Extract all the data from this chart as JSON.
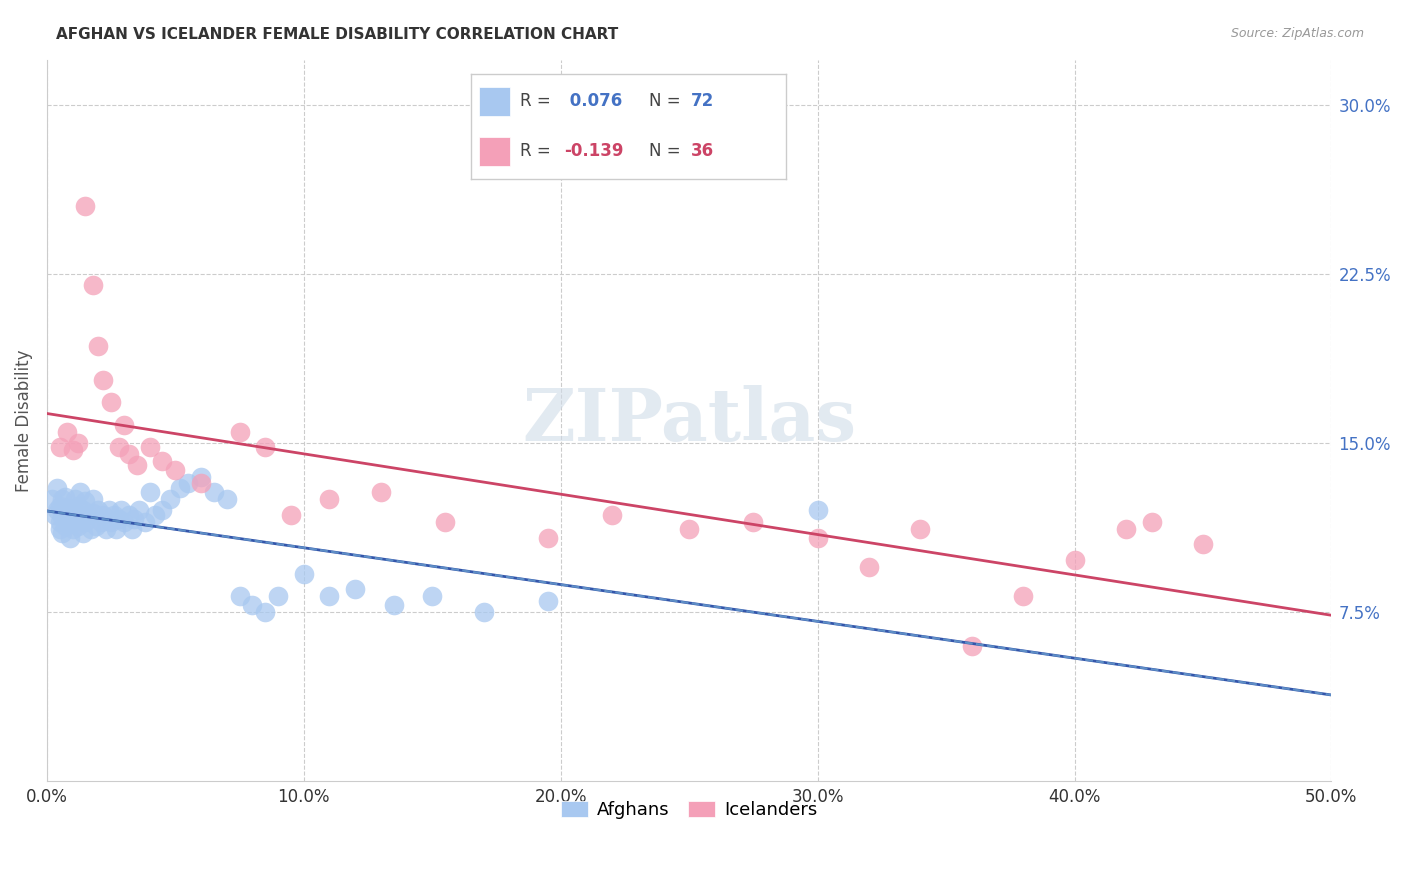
{
  "title": "AFGHAN VS ICELANDER FEMALE DISABILITY CORRELATION CHART",
  "source": "Source: ZipAtlas.com",
  "ylabel": "Female Disability",
  "xlim": [
    0.0,
    0.5
  ],
  "ylim": [
    0.0,
    0.32
  ],
  "ytick_vals": [
    0.075,
    0.15,
    0.225,
    0.3
  ],
  "xtick_vals": [
    0.0,
    0.1,
    0.2,
    0.3,
    0.4,
    0.5
  ],
  "background_color": "#ffffff",
  "grid_color": "#cccccc",
  "afghan_color": "#a8c8f0",
  "icelander_color": "#f4a0b8",
  "afghan_line_color": "#3355aa",
  "icelander_line_color": "#cc4466",
  "afghan_dashed_color": "#6699cc",
  "legend_r1_label": "R = ",
  "legend_r1_val": " 0.076",
  "legend_n1_label": "N = ",
  "legend_n1_val": "72",
  "legend_r2_label": "R = ",
  "legend_r2_val": "-0.139",
  "legend_n2_label": "N = ",
  "legend_n2_val": "36",
  "r1_color": "#4472C4",
  "n1_color": "#4472C4",
  "r2_color": "#cc4466",
  "n2_color": "#cc4466",
  "afghan_x": [
    0.002,
    0.003,
    0.004,
    0.004,
    0.005,
    0.005,
    0.005,
    0.006,
    0.006,
    0.006,
    0.007,
    0.007,
    0.007,
    0.008,
    0.008,
    0.009,
    0.009,
    0.01,
    0.01,
    0.01,
    0.011,
    0.011,
    0.012,
    0.012,
    0.013,
    0.013,
    0.014,
    0.014,
    0.015,
    0.015,
    0.016,
    0.017,
    0.018,
    0.018,
    0.019,
    0.02,
    0.021,
    0.022,
    0.023,
    0.024,
    0.025,
    0.026,
    0.027,
    0.028,
    0.029,
    0.03,
    0.032,
    0.033,
    0.034,
    0.036,
    0.038,
    0.04,
    0.042,
    0.045,
    0.048,
    0.052,
    0.055,
    0.06,
    0.065,
    0.07,
    0.075,
    0.08,
    0.085,
    0.09,
    0.1,
    0.11,
    0.12,
    0.135,
    0.15,
    0.17,
    0.195,
    0.3
  ],
  "afghan_y": [
    0.125,
    0.118,
    0.12,
    0.13,
    0.112,
    0.122,
    0.115,
    0.117,
    0.125,
    0.11,
    0.119,
    0.126,
    0.113,
    0.121,
    0.116,
    0.108,
    0.118,
    0.112,
    0.12,
    0.115,
    0.125,
    0.118,
    0.113,
    0.122,
    0.116,
    0.128,
    0.11,
    0.12,
    0.115,
    0.124,
    0.118,
    0.112,
    0.119,
    0.125,
    0.113,
    0.12,
    0.115,
    0.118,
    0.112,
    0.12,
    0.115,
    0.118,
    0.112,
    0.116,
    0.12,
    0.115,
    0.118,
    0.112,
    0.116,
    0.12,
    0.115,
    0.128,
    0.118,
    0.12,
    0.125,
    0.13,
    0.132,
    0.135,
    0.128,
    0.125,
    0.082,
    0.078,
    0.075,
    0.082,
    0.092,
    0.082,
    0.085,
    0.078,
    0.082,
    0.075,
    0.08,
    0.12
  ],
  "icelander_x": [
    0.005,
    0.008,
    0.01,
    0.012,
    0.015,
    0.018,
    0.02,
    0.022,
    0.025,
    0.028,
    0.03,
    0.032,
    0.035,
    0.04,
    0.045,
    0.05,
    0.06,
    0.075,
    0.085,
    0.095,
    0.11,
    0.13,
    0.155,
    0.195,
    0.22,
    0.25,
    0.275,
    0.3,
    0.32,
    0.34,
    0.36,
    0.38,
    0.4,
    0.42,
    0.43,
    0.45
  ],
  "icelander_y": [
    0.148,
    0.155,
    0.147,
    0.15,
    0.255,
    0.22,
    0.193,
    0.178,
    0.168,
    0.148,
    0.158,
    0.145,
    0.14,
    0.148,
    0.142,
    0.138,
    0.132,
    0.155,
    0.148,
    0.118,
    0.125,
    0.128,
    0.115,
    0.108,
    0.118,
    0.112,
    0.115,
    0.108,
    0.095,
    0.112,
    0.06,
    0.082,
    0.098,
    0.112,
    0.115,
    0.105
  ]
}
